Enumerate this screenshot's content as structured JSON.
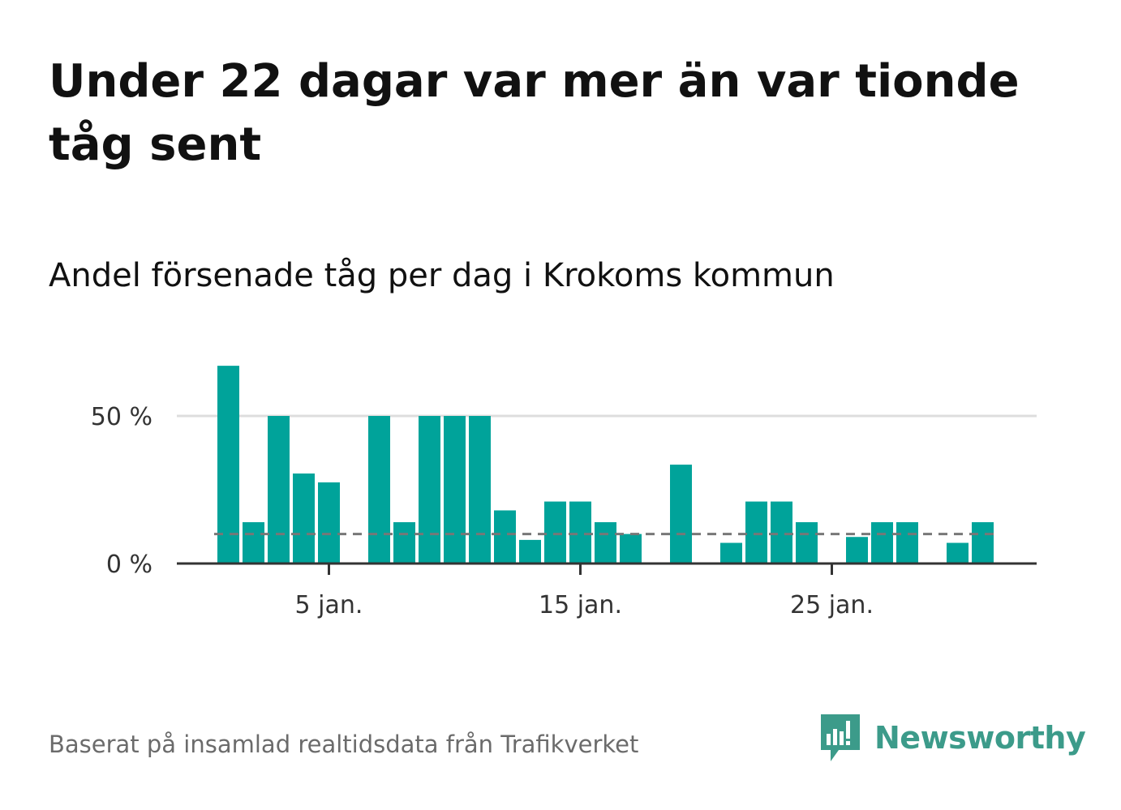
{
  "title": "Under 22 dagar var mer än var tionde tåg sent",
  "subtitle": "Andel försenade tåg per dag i Krokoms kommun",
  "source": "Baserat på insamlad realtidsdata från Trafikverket",
  "brand": {
    "name": "Newsworthy",
    "color": "#3c9b8a"
  },
  "colors": {
    "bar": "#00a39a",
    "reference_line": "#777777",
    "grid": "#dddddd",
    "axis": "#333333"
  },
  "chart_data": {
    "type": "bar",
    "x": [
      "2024-01-01",
      "2024-01-02",
      "2024-01-03",
      "2024-01-04",
      "2024-01-05",
      "2024-01-06",
      "2024-01-07",
      "2024-01-08",
      "2024-01-09",
      "2024-01-10",
      "2024-01-11",
      "2024-01-12",
      "2024-01-13",
      "2024-01-14",
      "2024-01-15",
      "2024-01-16",
      "2024-01-17",
      "2024-01-18",
      "2024-01-19",
      "2024-01-20",
      "2024-01-21",
      "2024-01-22",
      "2024-01-23",
      "2024-01-24",
      "2024-01-25",
      "2024-01-26",
      "2024-01-27",
      "2024-01-28",
      "2024-01-29",
      "2024-01-30",
      "2024-01-31"
    ],
    "values": [
      67,
      14,
      50,
      30.5,
      27.5,
      0,
      50,
      14,
      50,
      50,
      50,
      18,
      8,
      21,
      21,
      14,
      10,
      0,
      33.5,
      0,
      7,
      21,
      21,
      14,
      0,
      9,
      14,
      14,
      0,
      7,
      14
    ],
    "reference_line": 10,
    "ylim": [
      0,
      70
    ],
    "y_ticks": [
      {
        "value": 0,
        "label": "0 %"
      },
      {
        "value": 50,
        "label": "50 %"
      }
    ],
    "x_ticks": [
      {
        "day": 5,
        "label": "5 jan."
      },
      {
        "day": 15,
        "label": "15 jan."
      },
      {
        "day": 25,
        "label": "25 jan."
      }
    ],
    "grid": true,
    "xlabel": "",
    "ylabel": ""
  }
}
